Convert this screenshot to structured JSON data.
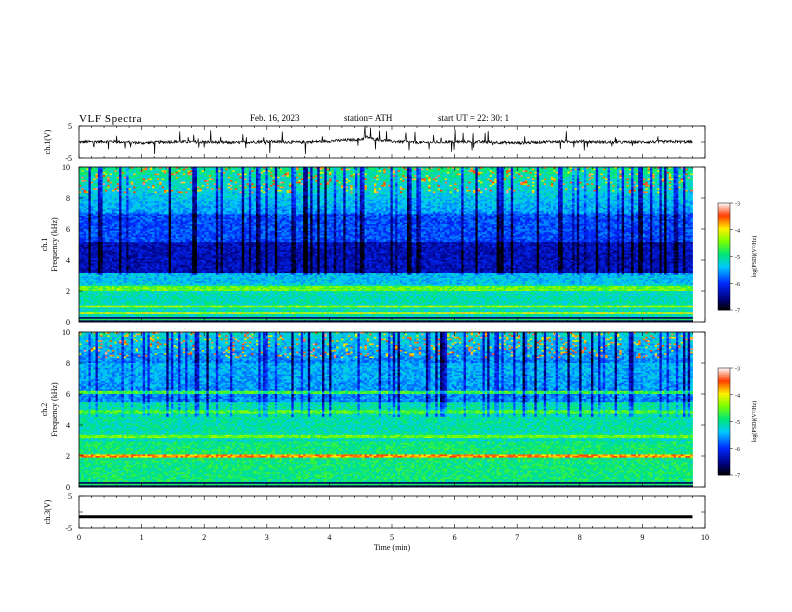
{
  "header": {
    "title": "VLF  Spectra",
    "date": "Feb. 16, 2023",
    "station": "station= ATH",
    "start_ut": "start  UT  =   22: 30: 1"
  },
  "chart_data": [
    {
      "type": "line",
      "panel": "ch1-waveform",
      "ylabel": "ch.1(V)",
      "ylim": [
        -5,
        5
      ],
      "y_ticks": [
        "5",
        "-5"
      ],
      "xlim": [
        0,
        10
      ],
      "series": [
        {
          "x": [
            0,
            0.5,
            1,
            1.5,
            2,
            2.5,
            3,
            3.5,
            4,
            4.5,
            4.6,
            4.7,
            5,
            5.5,
            6,
            6.5,
            7,
            7.5,
            8,
            8.5,
            9,
            9.5,
            9.8
          ],
          "values": [
            0,
            0.2,
            -0.3,
            0.1,
            0,
            -0.2,
            0.2,
            -0.1,
            0.3,
            0.8,
            1.6,
            0.9,
            0.2,
            -0.2,
            0.1,
            0,
            -0.3,
            0.1,
            0.2,
            -0.1,
            0,
            0.1,
            0
          ],
          "color": "#000000"
        }
      ]
    },
    {
      "type": "heatmap",
      "panel": "ch1-spectrogram",
      "ylabel": "ch.1\nFrequency  (kHz)",
      "ylim": [
        0,
        10
      ],
      "y_ticks": [
        "0",
        "2",
        "4",
        "6",
        "8",
        "10"
      ],
      "xlim": [
        0,
        10
      ],
      "data_extent_min": 9.8,
      "colorbar": {
        "label": "log(PSD)(V²/Hz)",
        "range": [
          -7,
          -3
        ],
        "ticks": [
          "-3",
          "-4",
          "-5",
          "-6",
          "-7"
        ]
      }
    },
    {
      "type": "heatmap",
      "panel": "ch2-spectrogram",
      "ylabel": "ch.2\nFrequency  (kHz)",
      "ylim": [
        0,
        10
      ],
      "y_ticks": [
        "0",
        "2",
        "4",
        "6",
        "8",
        "10"
      ],
      "xlim": [
        0,
        10
      ],
      "data_extent_min": 9.8,
      "colorbar": {
        "label": "log(PSD)(V²/Hz)",
        "range": [
          -7,
          -3
        ],
        "ticks": [
          "-3",
          "-4",
          "-5",
          "-6",
          "-7"
        ]
      }
    },
    {
      "type": "line",
      "panel": "ch3-waveform",
      "ylabel": "ch.3(V)",
      "ylim": [
        -5,
        5
      ],
      "y_ticks": [
        "5",
        "0",
        "-5"
      ],
      "xlim": [
        0,
        10
      ],
      "xlabel": "Time  (min)",
      "x_ticks": [
        "0",
        "1",
        "2",
        "3",
        "4",
        "5",
        "6",
        "7",
        "8",
        "9",
        "10"
      ],
      "series": [
        {
          "x": [
            0,
            9.8
          ],
          "values": [
            -1.5,
            -1.5
          ],
          "color": "#000000"
        }
      ]
    }
  ]
}
